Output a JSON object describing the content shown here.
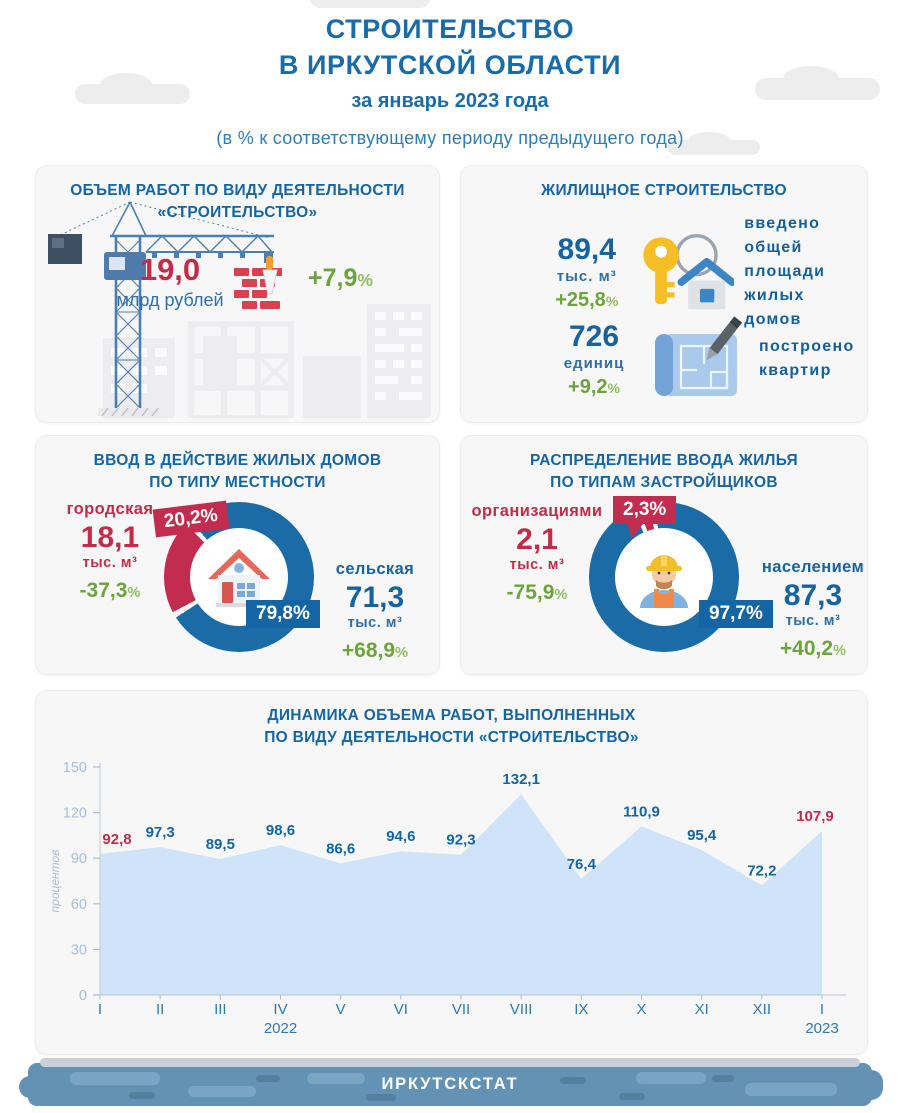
{
  "page": {
    "title_line1": "СТРОИТЕЛЬСТВО",
    "title_line2": "В ИРКУТСКОЙ ОБЛАСТИ",
    "subtitle": "за январь 2023 года",
    "note": "(в % к соответствующему периоду предыдущего года)",
    "footer": "ИРКУТСКСТАТ"
  },
  "cards": {
    "volume": {
      "title_line1": "ОБЪЕМ РАБОТ ПО ВИДУ ДЕЯТЕЛЬНОСТИ",
      "title_line2": "«СТРОИТЕЛЬСТВО»",
      "value": "19,0",
      "unit": "млрд рублей",
      "change_value": "+7,9",
      "change_suffix": "%"
    },
    "housing": {
      "title": "ЖИЛИЩНОЕ СТРОИТЕЛЬСТВО",
      "items": [
        {
          "value": "89,4",
          "unit": "тыс. м³",
          "change_value": "+25,8",
          "change_suffix": "%",
          "label_lines": [
            "введено",
            "общей площади",
            "жилых домов"
          ],
          "icon": "key-house-icon"
        },
        {
          "value": "726",
          "unit": "единиц",
          "change_value": "+9,2",
          "change_suffix": "%",
          "label_lines": [
            "построено",
            "квартир",
            ""
          ],
          "icon": "blueprint-pencil-icon"
        }
      ]
    },
    "locality": {
      "title_line1": "ВВОД В ДЕЙСТВИЕ ЖИЛЫХ ДОМОВ",
      "title_line2": "ПО ТИПУ МЕСТНОСТИ",
      "left": {
        "label": "городская",
        "value": "18,1",
        "unit": "тыс. м³",
        "change_value": "-37,3",
        "change_suffix": "%"
      },
      "right": {
        "label": "сельская",
        "value": "71,3",
        "unit": "тыс. м³",
        "change_value": "+68,9",
        "change_suffix": "%"
      },
      "donut": {
        "red_pct": "20,2%",
        "blue_pct": "79,8%",
        "red_value": 20.2,
        "blue_value": 79.8,
        "center_icon": "house-icon"
      }
    },
    "developers": {
      "title_line1": "РАСПРЕДЕЛЕНИЕ ВВОДА ЖИЛЬЯ",
      "title_line2": "ПО ТИПАМ ЗАСТРОЙЩИКОВ",
      "left": {
        "label": "организациями",
        "value": "2,1",
        "unit": "тыс. м³",
        "change_value": "-75,9",
        "change_suffix": "%"
      },
      "right": {
        "label": "населением",
        "value": "87,3",
        "unit": "тыс. м³",
        "change_value": "+40,2",
        "change_suffix": "%"
      },
      "donut": {
        "red_pct": "2,3%",
        "blue_pct": "97,7%",
        "red_value": 2.3,
        "blue_value": 97.7,
        "center_icon": "construction-worker-icon"
      }
    }
  },
  "chart_data": {
    "type": "area",
    "title_line1": "ДИНАМИКА ОБЪЕМА РАБОТ, ВЫПОЛНЕННЫХ",
    "title_line2": "ПО ВИДУ ДЕЯТЕЛЬНОСТИ «СТРОИТЕЛЬСТВО»",
    "ylabel": "процентов",
    "x": [
      "I",
      "II",
      "III",
      "IV",
      "V",
      "VI",
      "VII",
      "VIII",
      "IX",
      "X",
      "XI",
      "XII",
      "I"
    ],
    "values": [
      92.8,
      97.3,
      89.5,
      98.6,
      86.6,
      94.6,
      92.3,
      132.1,
      76.4,
      110.9,
      95.4,
      72.2,
      107.9
    ],
    "labels": [
      "92,8",
      "97,3",
      "89,5",
      "98,6",
      "86,6",
      "94,6",
      "92,3",
      "132,1",
      "76,4",
      "110,9",
      "95,4",
      "72,2",
      "107,9"
    ],
    "year_labels": [
      {
        "index": 3,
        "text": "2022"
      },
      {
        "index": 12,
        "text": "2023"
      }
    ],
    "yticks": [
      0,
      30,
      60,
      90,
      120,
      150
    ],
    "ylim": [
      0,
      150
    ],
    "grid": false,
    "legend": "none",
    "highlight_indices": [
      0,
      12
    ],
    "fill_color": "#cfe4f8",
    "label_color": "#17639e",
    "highlight_color": "#c22c48"
  },
  "icons": [
    "crane-icon",
    "buildings-icon",
    "bricks-trowel-icon",
    "key-house-icon",
    "blueprint-pencil-icon",
    "house-icon",
    "construction-worker-icon"
  ],
  "colors": {
    "accent_blue": "#1a6ca8",
    "card_title_blue": "#1565a2",
    "value_blue": "#17639e",
    "red": "#c22c4e",
    "green": "#6da33c",
    "green_light": "#8fbf63",
    "donut_blue": "#1b6ba6",
    "area_fill": "#cfe4f8",
    "card_bg": "#f7f7f8",
    "footer_blue": "#6392b5"
  }
}
